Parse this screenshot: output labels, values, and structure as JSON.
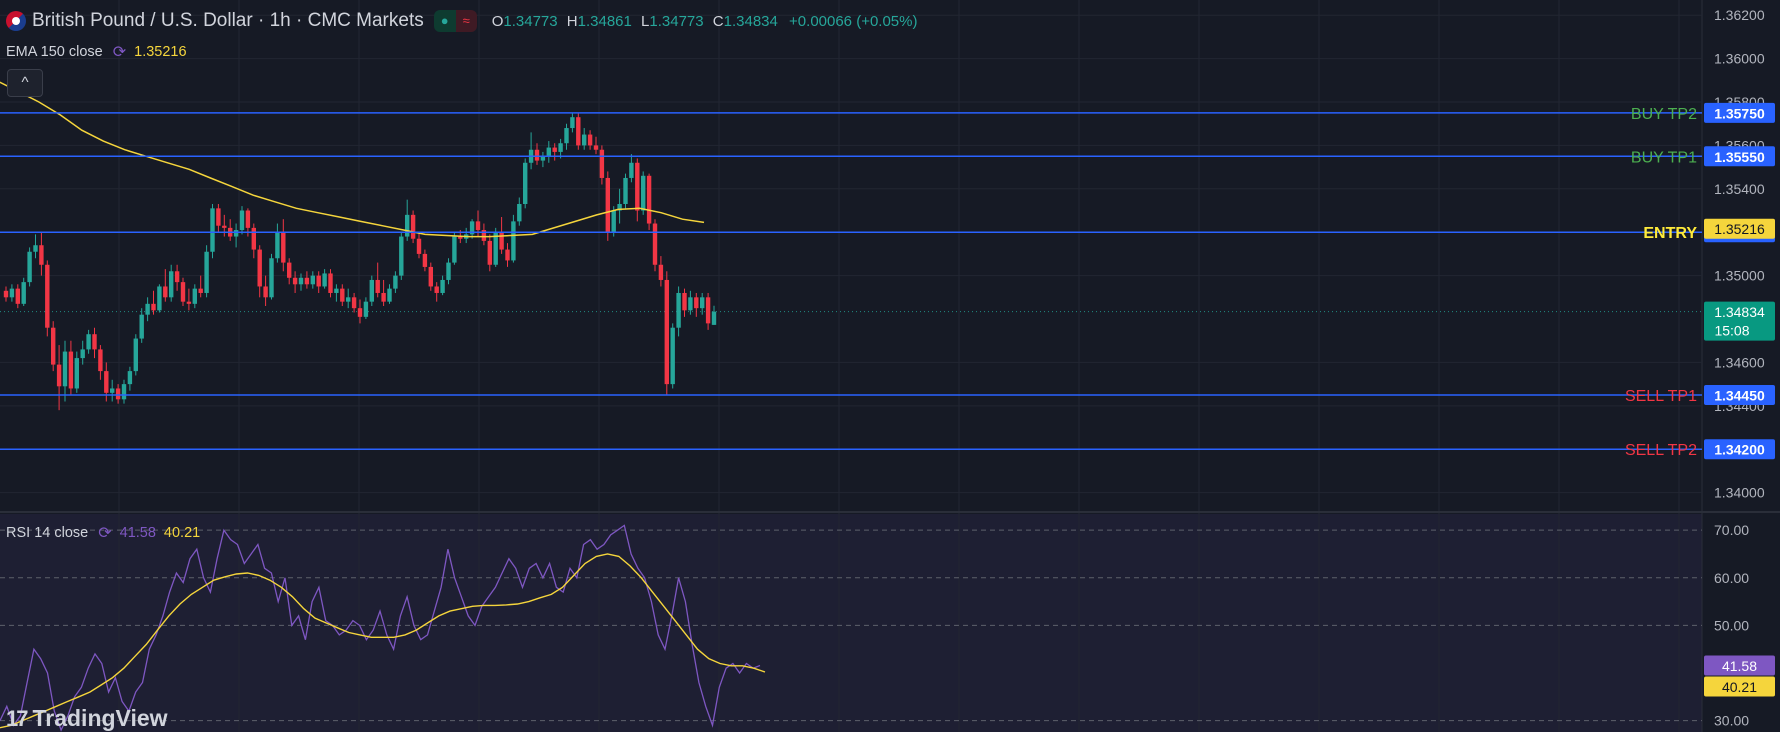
{
  "header": {
    "symbol_title": "British Pound / U.S. Dollar · 1h · CMC Markets",
    "ohlc": [
      {
        "k": "O",
        "v": "1.34773"
      },
      {
        "k": "H",
        "v": "1.34861"
      },
      {
        "k": "L",
        "v": "1.34773"
      },
      {
        "k": "C",
        "v": "1.34834"
      }
    ],
    "change": "+0.00066 (+0.05%)",
    "pill_dot": "●",
    "pill_wave": "≈"
  },
  "ema_indicator": {
    "label": "EMA 150 close",
    "value": "1.35216"
  },
  "rsi_indicator": {
    "label": "RSI 14 close",
    "value_rsi": "41.58",
    "value_ma": "40.21"
  },
  "branding": {
    "logo_text": "TradingView",
    "logo_mark": "17"
  },
  "collapse_icon": "chevron-up-icon",
  "colors": {
    "background": "#161a25",
    "up": "#26a69a",
    "down": "#f23645",
    "level_line": "#2962ff",
    "ema": "#f5d53c",
    "rsi": "#7e57c2",
    "buy_label": "#4caf50",
    "sell_label": "#f23645",
    "entry_label": "#ffeb3b"
  },
  "chart_data": {
    "type": "candlestick",
    "title": "British Pound / U.S. Dollar · 1h · CMC Markets",
    "price_axis": {
      "ticks": [
        "1.36200",
        "1.36000",
        "1.35800",
        "1.35600",
        "1.35400",
        "1.35000",
        "1.34600",
        "1.34400",
        "1.34000"
      ],
      "ylim": [
        1.3392,
        1.3627
      ]
    },
    "levels": [
      {
        "label": "BUY TP2",
        "price": "1.35750",
        "kind": "buy"
      },
      {
        "label": "BUY TP1",
        "price": "1.35550",
        "kind": "buy"
      },
      {
        "label": "ENTRY",
        "price": "1.35200",
        "kind": "entry"
      },
      {
        "label": "SELL TP1",
        "price": "1.34450",
        "kind": "sell"
      },
      {
        "label": "SELL TP2",
        "price": "1.34200",
        "kind": "sell"
      }
    ],
    "ema_last": "1.35216",
    "last_price": "1.34834",
    "countdown": "15:08",
    "ema_values": [
      1.359,
      1.3585,
      1.358,
      1.3574,
      1.3567,
      1.3562,
      1.3558,
      1.3555,
      1.3552,
      1.3549,
      1.3545,
      1.3541,
      1.3537,
      1.3534,
      1.3531,
      1.3529,
      1.3527,
      1.3525,
      1.3523,
      1.3521,
      1.3519,
      1.35185,
      1.3518,
      1.3518,
      1.35185,
      1.3519,
      1.3522,
      1.3525,
      1.3528,
      1.35305,
      1.3531,
      1.3529,
      1.3526,
      1.35245
    ],
    "candles": [
      [
        1.3493,
        1.3495,
        1.3488,
        1.349
      ],
      [
        1.349,
        1.3496,
        1.3488,
        1.3494
      ],
      [
        1.3494,
        1.3496,
        1.3485,
        1.3487
      ],
      [
        1.3487,
        1.3499,
        1.3486,
        1.3497
      ],
      [
        1.3497,
        1.3513,
        1.3495,
        1.3511
      ],
      [
        1.3511,
        1.3519,
        1.3508,
        1.3514
      ],
      [
        1.3514,
        1.352,
        1.35,
        1.3505
      ],
      [
        1.3505,
        1.3507,
        1.3472,
        1.3476
      ],
      [
        1.3476,
        1.3479,
        1.3456,
        1.3459
      ],
      [
        1.3459,
        1.3468,
        1.3438,
        1.3449
      ],
      [
        1.3449,
        1.347,
        1.3442,
        1.3465
      ],
      [
        1.3465,
        1.347,
        1.3445,
        1.3448
      ],
      [
        1.3448,
        1.3465,
        1.3446,
        1.3462
      ],
      [
        1.3462,
        1.347,
        1.3459,
        1.3466
      ],
      [
        1.3466,
        1.3475,
        1.3464,
        1.3473
      ],
      [
        1.3473,
        1.3476,
        1.3462,
        1.3466
      ],
      [
        1.3466,
        1.3468,
        1.3452,
        1.3456
      ],
      [
        1.3456,
        1.346,
        1.3442,
        1.3446
      ],
      [
        1.3446,
        1.3452,
        1.3442,
        1.3448
      ],
      [
        1.3448,
        1.345,
        1.3441,
        1.3443
      ],
      [
        1.3443,
        1.3452,
        1.3441,
        1.345
      ],
      [
        1.345,
        1.3458,
        1.3447,
        1.3456
      ],
      [
        1.3456,
        1.3473,
        1.3454,
        1.3471
      ],
      [
        1.3471,
        1.3485,
        1.3469,
        1.3482
      ],
      [
        1.3482,
        1.349,
        1.3479,
        1.3487
      ],
      [
        1.3487,
        1.3493,
        1.3482,
        1.3484
      ],
      [
        1.3484,
        1.3496,
        1.3483,
        1.3495
      ],
      [
        1.3495,
        1.3503,
        1.3488,
        1.349
      ],
      [
        1.349,
        1.3505,
        1.3488,
        1.3502
      ],
      [
        1.3502,
        1.3505,
        1.3493,
        1.3497
      ],
      [
        1.3497,
        1.3499,
        1.3486,
        1.3488
      ],
      [
        1.3488,
        1.3494,
        1.3484,
        1.3487
      ],
      [
        1.3487,
        1.3496,
        1.3485,
        1.3494
      ],
      [
        1.3494,
        1.35,
        1.349,
        1.3492
      ],
      [
        1.3492,
        1.3514,
        1.349,
        1.3511
      ],
      [
        1.3511,
        1.3533,
        1.3508,
        1.3531
      ],
      [
        1.3531,
        1.3533,
        1.352,
        1.3523
      ],
      [
        1.3523,
        1.3528,
        1.3518,
        1.3522
      ],
      [
        1.3522,
        1.3526,
        1.3516,
        1.3518
      ],
      [
        1.3518,
        1.3524,
        1.3513,
        1.3521
      ],
      [
        1.3521,
        1.3532,
        1.3519,
        1.353
      ],
      [
        1.353,
        1.3531,
        1.3518,
        1.3522
      ],
      [
        1.3522,
        1.3524,
        1.3508,
        1.3512
      ],
      [
        1.3512,
        1.3514,
        1.349,
        1.3495
      ],
      [
        1.3495,
        1.35,
        1.3486,
        1.349
      ],
      [
        1.349,
        1.351,
        1.3489,
        1.3508
      ],
      [
        1.3508,
        1.3524,
        1.3506,
        1.352
      ],
      [
        1.352,
        1.3526,
        1.3502,
        1.3506
      ],
      [
        1.3506,
        1.3508,
        1.3496,
        1.3499
      ],
      [
        1.3499,
        1.3502,
        1.3492,
        1.3496
      ],
      [
        1.3496,
        1.3501,
        1.3493,
        1.3499
      ],
      [
        1.3499,
        1.3502,
        1.3494,
        1.3496
      ],
      [
        1.3496,
        1.3502,
        1.3494,
        1.35
      ],
      [
        1.35,
        1.3502,
        1.3492,
        1.3495
      ],
      [
        1.3495,
        1.3503,
        1.3494,
        1.3501
      ],
      [
        1.3501,
        1.3503,
        1.349,
        1.3492
      ],
      [
        1.3492,
        1.3496,
        1.3488,
        1.3494
      ],
      [
        1.3494,
        1.3496,
        1.3486,
        1.3488
      ],
      [
        1.3488,
        1.3494,
        1.3485,
        1.349
      ],
      [
        1.349,
        1.3492,
        1.3483,
        1.3485
      ],
      [
        1.3485,
        1.3489,
        1.3478,
        1.3481
      ],
      [
        1.3481,
        1.349,
        1.348,
        1.3488
      ],
      [
        1.3488,
        1.35,
        1.3486,
        1.3498
      ],
      [
        1.3498,
        1.3506,
        1.349,
        1.3492
      ],
      [
        1.3492,
        1.3498,
        1.3486,
        1.3488
      ],
      [
        1.3488,
        1.3496,
        1.3487,
        1.3494
      ],
      [
        1.3494,
        1.3502,
        1.3492,
        1.35
      ],
      [
        1.35,
        1.352,
        1.3498,
        1.3518
      ],
      [
        1.3518,
        1.3535,
        1.3516,
        1.3528
      ],
      [
        1.3528,
        1.353,
        1.3515,
        1.3517
      ],
      [
        1.3517,
        1.352,
        1.3508,
        1.351
      ],
      [
        1.351,
        1.3512,
        1.3502,
        1.3504
      ],
      [
        1.3504,
        1.3506,
        1.3493,
        1.3495
      ],
      [
        1.3495,
        1.3497,
        1.3488,
        1.3492
      ],
      [
        1.3492,
        1.35,
        1.3491,
        1.3498
      ],
      [
        1.3498,
        1.3508,
        1.3496,
        1.3506
      ],
      [
        1.3506,
        1.352,
        1.3505,
        1.3518
      ],
      [
        1.3518,
        1.3521,
        1.3515,
        1.3517
      ],
      [
        1.3517,
        1.3522,
        1.3515,
        1.3519
      ],
      [
        1.3519,
        1.3526,
        1.3517,
        1.3525
      ],
      [
        1.3525,
        1.353,
        1.3518,
        1.3521
      ],
      [
        1.3521,
        1.3524,
        1.3514,
        1.3516
      ],
      [
        1.3516,
        1.3519,
        1.3502,
        1.3505
      ],
      [
        1.3505,
        1.3522,
        1.3504,
        1.352
      ],
      [
        1.352,
        1.3527,
        1.351,
        1.3512
      ],
      [
        1.3512,
        1.3515,
        1.3504,
        1.3507
      ],
      [
        1.3507,
        1.3528,
        1.3506,
        1.3525
      ],
      [
        1.3525,
        1.3536,
        1.3523,
        1.3533
      ],
      [
        1.3533,
        1.3554,
        1.3531,
        1.3552
      ],
      [
        1.3552,
        1.3566,
        1.3549,
        1.3558
      ],
      [
        1.3558,
        1.3561,
        1.3551,
        1.3553
      ],
      [
        1.3553,
        1.3557,
        1.355,
        1.3555
      ],
      [
        1.3555,
        1.3562,
        1.3552,
        1.3559
      ],
      [
        1.3559,
        1.3561,
        1.3553,
        1.3557
      ],
      [
        1.3557,
        1.3563,
        1.3554,
        1.3561
      ],
      [
        1.3561,
        1.357,
        1.3558,
        1.3568
      ],
      [
        1.3568,
        1.3575,
        1.3566,
        1.3573
      ],
      [
        1.3573,
        1.3575,
        1.3558,
        1.356
      ],
      [
        1.356,
        1.3568,
        1.3558,
        1.3565
      ],
      [
        1.3565,
        1.3567,
        1.3558,
        1.356
      ],
      [
        1.356,
        1.3564,
        1.3556,
        1.3558
      ],
      [
        1.3558,
        1.356,
        1.3542,
        1.3545
      ],
      [
        1.3545,
        1.3548,
        1.3516,
        1.352
      ],
      [
        1.352,
        1.3532,
        1.3518,
        1.353
      ],
      [
        1.353,
        1.354,
        1.3524,
        1.3533
      ],
      [
        1.3533,
        1.3547,
        1.3531,
        1.3545
      ],
      [
        1.3545,
        1.3556,
        1.3543,
        1.3552
      ],
      [
        1.3552,
        1.3554,
        1.3525,
        1.353
      ],
      [
        1.353,
        1.3548,
        1.3528,
        1.3546
      ],
      [
        1.3546,
        1.3547,
        1.3521,
        1.3524
      ],
      [
        1.3524,
        1.3526,
        1.3502,
        1.3505
      ],
      [
        1.3505,
        1.3509,
        1.3495,
        1.3498
      ],
      [
        1.3498,
        1.3502,
        1.3445,
        1.345
      ],
      [
        1.345,
        1.3478,
        1.3448,
        1.3476
      ],
      [
        1.3476,
        1.3495,
        1.3472,
        1.3492
      ],
      [
        1.3492,
        1.3494,
        1.3481,
        1.3484
      ],
      [
        1.3484,
        1.3493,
        1.3482,
        1.349
      ],
      [
        1.349,
        1.3492,
        1.3481,
        1.3485
      ],
      [
        1.3485,
        1.3492,
        1.3482,
        1.349
      ],
      [
        1.349,
        1.3492,
        1.3475,
        1.3478
      ],
      [
        1.34773,
        1.34861,
        1.34773,
        1.34834
      ]
    ],
    "rsi_axis": {
      "ticks": [
        "70.00",
        "60.00",
        "50.00",
        "30.00"
      ],
      "ylim": [
        27.6,
        73.4
      ]
    },
    "rsi_values": [
      30,
      33,
      29,
      31,
      38,
      45,
      43,
      40,
      32,
      28,
      31,
      35,
      37,
      41,
      44,
      42,
      36,
      39,
      34,
      32,
      36,
      38,
      45,
      48,
      52,
      57,
      61,
      59,
      64,
      66,
      60,
      57,
      64,
      70,
      68,
      67,
      63,
      65,
      67,
      62,
      61,
      55,
      60,
      50,
      52,
      47,
      55,
      58,
      51,
      50,
      48,
      49,
      51,
      50,
      47,
      49,
      53,
      48,
      45,
      52,
      56,
      50,
      47,
      48,
      53,
      58,
      66,
      60,
      56,
      52,
      50,
      54,
      56,
      58,
      61,
      64,
      62,
      58,
      62,
      63,
      60,
      63,
      58,
      57,
      62,
      60,
      67,
      68,
      66,
      67,
      69,
      70,
      71,
      65,
      62,
      60,
      55,
      48,
      45,
      52,
      60,
      55,
      46,
      38,
      33,
      29,
      37,
      41,
      42,
      40,
      42,
      41,
      41.58
    ],
    "rsi_ma_values": [
      28.5,
      29,
      30,
      31,
      32,
      33,
      34,
      35,
      36,
      37.5,
      39,
      41,
      43.5,
      46,
      49,
      52,
      54.5,
      56.5,
      58,
      59.5,
      60.2,
      60.8,
      61,
      60.5,
      59.5,
      58,
      56,
      53.5,
      51.5,
      50.5,
      49.5,
      48.5,
      48,
      47.5,
      47.5,
      47.5,
      48,
      49,
      50.5,
      52,
      53,
      53.5,
      54,
      54.2,
      54.2,
      54.3,
      54.5,
      55,
      55.8,
      56.5,
      58,
      60.5,
      63,
      64.5,
      65,
      64.5,
      62.5,
      60,
      57,
      54,
      51,
      48,
      45,
      43,
      42,
      41.5,
      41.5,
      41,
      40.21
    ],
    "rsi_last": "41.58",
    "rsi_ma_last": "40.21"
  }
}
